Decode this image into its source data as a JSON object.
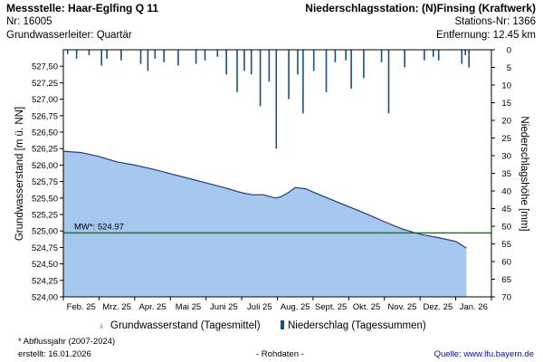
{
  "header": {
    "station_line": "Messstelle: Haar-Eglfing Q 11",
    "nr_line": "Nr: 16005",
    "aquifer_line": "Grundwasserleiter: Quartär",
    "precip_station_line": "Niederschlagsstation: (N)Finsing (Kraftwerk)",
    "precip_nr_line": "Stations-Nr: 1366",
    "distance_line": "Entfernung: 12.45 km"
  },
  "footer": {
    "note": "* Abflussjahr (2007-2024)",
    "created": "erstellt:  16.01.2026",
    "raw": "- Rohdaten -",
    "source_label": "Quelle: ",
    "source_link": "www.lfu.bayern.de"
  },
  "colors": {
    "area_fill": "#a6c8ef",
    "area_line": "#1a3f8a",
    "precip_bar": "#1c4f7e",
    "mean_line": "#1e7a1e"
  },
  "chart_data": {
    "type": "area",
    "title": "",
    "ylabel_left": "Grundwasserstand [m ü. NN]",
    "ylabel_right": "Niederschlagshöhe [mm]",
    "xlim": [
      0,
      12
    ],
    "ylim_left": [
      524.0,
      527.75
    ],
    "ylim_right": [
      0,
      70
    ],
    "left_ticks": [
      "527,50",
      "527,25",
      "527,00",
      "526,75",
      "526,50",
      "526,25",
      "526,00",
      "525,75",
      "525,50",
      "525,25",
      "525,00",
      "524,75",
      "524,50",
      "524,25",
      "524,00"
    ],
    "right_ticks": [
      "0",
      "5",
      "10",
      "15",
      "20",
      "25",
      "30",
      "35",
      "40",
      "45",
      "50",
      "55",
      "60",
      "65",
      "70"
    ],
    "x_ticks": [
      "Feb. 25",
      "Mrz. 25",
      "Apr. 25",
      "Mai 25",
      "Juni 25",
      "Juli 25",
      "Aug. 25",
      "Sept. 25",
      "Okt. 25",
      "Nov. 25",
      "Dez. 25",
      "Jan. 26"
    ],
    "mean": {
      "label": "MW*: 524.97",
      "value": 524.97
    },
    "series": [
      {
        "name": "Grundwasserstand (Tagesmittel)",
        "type": "area",
        "x": [
          0.0,
          0.5,
          1.0,
          1.5,
          2.0,
          2.5,
          3.0,
          3.5,
          4.0,
          4.5,
          5.0,
          5.3,
          5.6,
          5.8,
          5.95,
          6.1,
          6.3,
          6.5,
          6.8,
          7.0,
          7.5,
          8.0,
          8.5,
          9.0,
          9.5,
          10.0,
          10.5,
          11.0,
          11.3
        ],
        "values": [
          526.21,
          526.19,
          526.13,
          526.05,
          526.0,
          525.94,
          525.87,
          525.8,
          525.73,
          525.66,
          525.58,
          525.55,
          525.55,
          525.52,
          525.5,
          525.52,
          525.58,
          525.66,
          525.64,
          525.59,
          525.48,
          525.37,
          525.26,
          525.14,
          525.03,
          524.95,
          524.9,
          524.84,
          524.74
        ]
      },
      {
        "name": "Niederschlag (Tagessummen)",
        "type": "bar",
        "x": [
          0.1,
          0.35,
          0.7,
          1.05,
          1.2,
          1.6,
          2.15,
          2.35,
          2.55,
          2.8,
          3.2,
          3.7,
          3.95,
          4.3,
          4.55,
          4.85,
          5.05,
          5.25,
          5.5,
          5.75,
          5.95,
          6.3,
          6.55,
          6.7,
          7.0,
          7.35,
          7.6,
          7.9,
          8.05,
          8.4,
          8.9,
          9.1,
          9.55,
          10.1,
          10.35,
          10.5,
          11.15,
          11.25,
          11.35
        ],
        "values": [
          1.2,
          2.5,
          1.5,
          4.5,
          2.5,
          3.0,
          4.0,
          6.0,
          2.5,
          3.5,
          4.5,
          4.0,
          3.0,
          2.0,
          7.0,
          12.0,
          6.0,
          7.0,
          16.0,
          9.0,
          28.0,
          14.0,
          7.0,
          18.0,
          6.0,
          12.0,
          3.5,
          3.0,
          11.0,
          8.0,
          3.5,
          18.0,
          5.0,
          3.0,
          2.0,
          3.0,
          4.0,
          1.5,
          5.0
        ]
      }
    ],
    "legend": [
      "Grundwasserstand (Tagesmittel)",
      "Niederschlag (Tagessummen)"
    ],
    "legend_position": "bottom"
  }
}
